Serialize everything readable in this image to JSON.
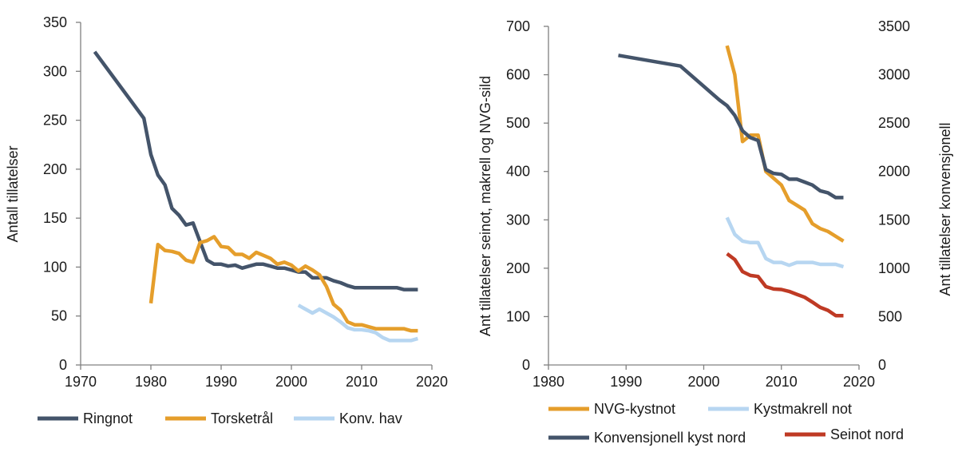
{
  "chart_data": [
    {
      "type": "line",
      "title": "",
      "xlabel": "",
      "ylabel": "Antall tillatelser",
      "xlim": [
        1970,
        2020
      ],
      "ylim": [
        0,
        350
      ],
      "xticks": [
        1970,
        1980,
        1990,
        2000,
        2010,
        2020
      ],
      "yticks": [
        0,
        50,
        100,
        150,
        200,
        250,
        300,
        350
      ],
      "grid": false,
      "legend": "bottom",
      "series": [
        {
          "name": "Ringnot",
          "color": "#44546A",
          "x": [
            1972,
            1979,
            1980,
            1981,
            1982,
            1983,
            1984,
            1985,
            1986,
            1987,
            1988,
            1989,
            1990,
            1991,
            1992,
            1993,
            1994,
            1995,
            1996,
            1997,
            1998,
            1999,
            2000,
            2001,
            2002,
            2003,
            2004,
            2005,
            2006,
            2007,
            2008,
            2009,
            2010,
            2011,
            2012,
            2013,
            2014,
            2015,
            2016,
            2017,
            2018
          ],
          "y": [
            320,
            252,
            215,
            194,
            184,
            160,
            153,
            143,
            145,
            126,
            107,
            103,
            103,
            101,
            102,
            99,
            101,
            103,
            103,
            101,
            99,
            99,
            97,
            95,
            95,
            89,
            89,
            89,
            86,
            84,
            81,
            79,
            79,
            79,
            79,
            79,
            79,
            79,
            77,
            77,
            77
          ]
        },
        {
          "name": "Torsketrål",
          "color": "#E59E2B",
          "x": [
            1980,
            1981,
            1982,
            1983,
            1984,
            1985,
            1986,
            1987,
            1988,
            1989,
            1990,
            1991,
            1992,
            1993,
            1994,
            1995,
            1996,
            1997,
            1998,
            1999,
            2000,
            2001,
            2002,
            2003,
            2004,
            2005,
            2006,
            2007,
            2008,
            2009,
            2010,
            2011,
            2012,
            2013,
            2014,
            2015,
            2016,
            2017,
            2018
          ],
          "y": [
            63,
            123,
            117,
            116,
            114,
            107,
            105,
            125,
            127,
            131,
            121,
            120,
            113,
            113,
            109,
            115,
            112,
            109,
            103,
            105,
            102,
            96,
            101,
            97,
            92,
            80,
            62,
            56,
            44,
            41,
            41,
            39,
            37,
            37,
            37,
            37,
            37,
            35,
            35
          ]
        },
        {
          "name": "Konv. hav",
          "color": "#B7D6F1",
          "x": [
            2001,
            2002,
            2003,
            2004,
            2005,
            2006,
            2007,
            2008,
            2009,
            2010,
            2011,
            2012,
            2013,
            2014,
            2015,
            2016,
            2017,
            2018
          ],
          "y": [
            61,
            57,
            53,
            57,
            53,
            49,
            44,
            38,
            36,
            36,
            35,
            33,
            28,
            25,
            25,
            25,
            25,
            27
          ]
        }
      ]
    },
    {
      "type": "line",
      "title": "",
      "xlabel": "",
      "ylabel": "Ant tillatelser seinot, makrell og NVG-sild",
      "y2label": "Ant tillatelser konvensjonell",
      "xlim": [
        1980,
        2020
      ],
      "ylim": [
        0,
        700
      ],
      "y2lim": [
        0,
        3500
      ],
      "xticks": [
        1980,
        1990,
        2000,
        2010,
        2020
      ],
      "yticks": [
        0,
        100,
        200,
        300,
        400,
        500,
        600,
        700
      ],
      "y2ticks": [
        0,
        500,
        1000,
        1500,
        2000,
        2500,
        3000,
        3500
      ],
      "grid": false,
      "legend": "bottom",
      "series": [
        {
          "name": "NVG-kystnot",
          "color": "#E59E2B",
          "secondary_axis": false,
          "x": [
            2003,
            2004,
            2005,
            2006,
            2007,
            2008,
            2009,
            2010,
            2011,
            2012,
            2013,
            2014,
            2015,
            2016,
            2017,
            2018
          ],
          "y": [
            660,
            600,
            462,
            475,
            475,
            400,
            386,
            372,
            340,
            330,
            320,
            292,
            282,
            276,
            266,
            256
          ]
        },
        {
          "name": "Kystmakrell not",
          "color": "#B7D6F1",
          "secondary_axis": false,
          "x": [
            2003,
            2004,
            2005,
            2006,
            2007,
            2008,
            2009,
            2010,
            2011,
            2012,
            2013,
            2014,
            2015,
            2016,
            2017,
            2018
          ],
          "y": [
            305,
            270,
            256,
            253,
            253,
            220,
            212,
            212,
            206,
            212,
            212,
            212,
            208,
            208,
            208,
            203
          ]
        },
        {
          "name": "Konvensjonell kyst nord",
          "color": "#44546A",
          "secondary_axis": true,
          "x": [
            1989,
            1997,
            2000,
            2001,
            2002,
            2003,
            2004,
            2005,
            2006,
            2007,
            2008,
            2009,
            2010,
            2011,
            2012,
            2013,
            2014,
            2015,
            2016,
            2017,
            2018
          ],
          "y": [
            3200,
            3090,
            2880,
            2810,
            2740,
            2680,
            2580,
            2420,
            2350,
            2320,
            2020,
            1980,
            1970,
            1920,
            1920,
            1890,
            1860,
            1800,
            1780,
            1730,
            1730
          ]
        },
        {
          "name": "Seinot nord",
          "color": "#BF3A24",
          "secondary_axis": false,
          "x": [
            2003,
            2004,
            2005,
            2006,
            2007,
            2008,
            2009,
            2010,
            2011,
            2012,
            2013,
            2014,
            2015,
            2016,
            2017,
            2018
          ],
          "y": [
            230,
            218,
            193,
            185,
            183,
            162,
            157,
            156,
            152,
            146,
            140,
            130,
            119,
            113,
            102,
            102
          ]
        }
      ]
    }
  ]
}
